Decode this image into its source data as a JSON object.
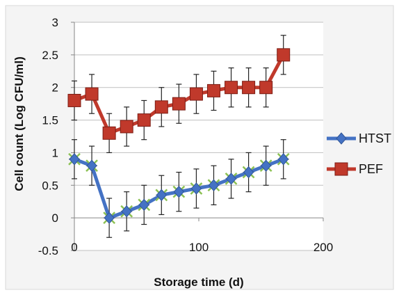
{
  "chart_data": {
    "type": "line",
    "title": "",
    "xlabel": "Storage time (d)",
    "ylabel": "Cell count (Log CFU/ml)",
    "xlim": [
      0,
      200
    ],
    "ylim": [
      -0.5,
      3
    ],
    "x_ticks": [
      "0",
      "100",
      "200"
    ],
    "y_ticks": [
      "-0.5",
      "0",
      "0.5",
      "1",
      "1.5",
      "2",
      "2.5",
      "3"
    ],
    "grid": "horizontal",
    "legend_position": "right",
    "series": [
      {
        "name": "HTST",
        "color": "#4472c4",
        "marker": "diamond",
        "x": [
          0,
          14,
          28,
          42,
          56,
          70,
          84,
          98,
          112,
          126,
          140,
          154,
          168
        ],
        "y": [
          0.9,
          0.8,
          0.0,
          0.1,
          0.2,
          0.35,
          0.4,
          0.45,
          0.5,
          0.6,
          0.7,
          0.8,
          0.9
        ],
        "error": 0.3
      },
      {
        "name": "PEF",
        "color": "#c0392b",
        "marker": "square",
        "x": [
          0,
          14,
          28,
          42,
          56,
          70,
          84,
          98,
          112,
          126,
          140,
          154,
          168
        ],
        "y": [
          1.8,
          1.9,
          1.3,
          1.4,
          1.5,
          1.7,
          1.75,
          1.9,
          1.95,
          2.0,
          2.0,
          2.0,
          2.5
        ],
        "error": 0.3
      }
    ]
  }
}
